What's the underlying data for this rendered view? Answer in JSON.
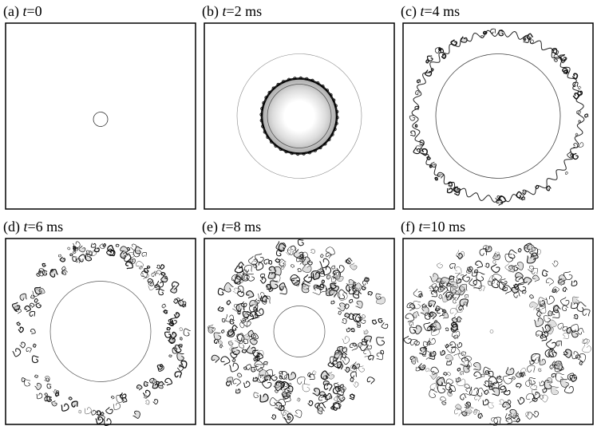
{
  "panels": [
    {
      "tag": "(a)",
      "variable": "t",
      "value": "=0"
    },
    {
      "tag": "(b)",
      "variable": "t",
      "value": "=2 ms"
    },
    {
      "tag": "(c)",
      "variable": "t",
      "value": "=4 ms"
    },
    {
      "tag": "(d)",
      "variable": "t",
      "value": "=6 ms"
    },
    {
      "tag": "(e)",
      "variable": "t",
      "value": "=8 ms"
    },
    {
      "tag": "(f)",
      "variable": "t",
      "value": "=10 ms"
    }
  ]
}
